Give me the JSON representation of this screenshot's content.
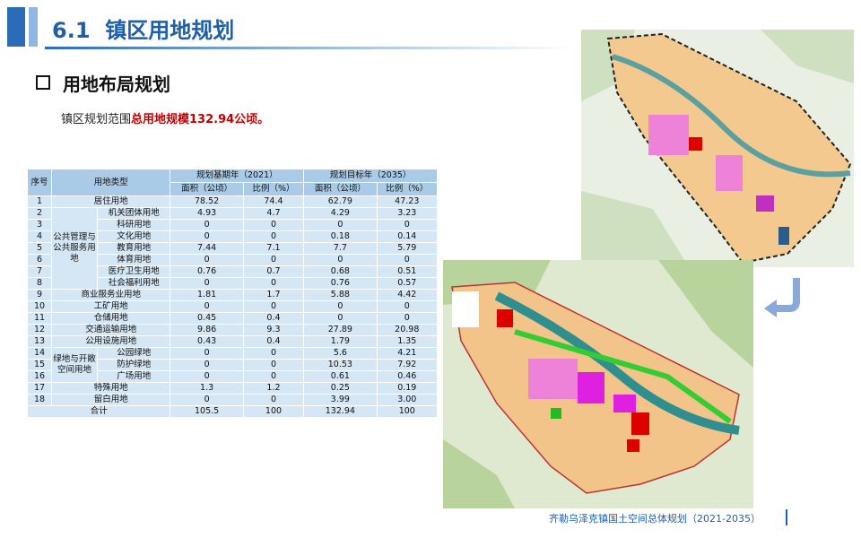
{
  "header": {
    "number": "6.1",
    "title": "镇区用地规划"
  },
  "section": {
    "title": "用地布局规划"
  },
  "intro": {
    "text": "镇区规划范围",
    "highlight": "总用地规模132.94公顷。"
  },
  "table": {
    "header": {
      "no": "序号",
      "type": "用地类型",
      "base": "规划基期年（2021）",
      "target": "规划目标年（2035）"
    },
    "subheaders": [
      "面积（公顷）",
      "比例（%）",
      "面积（公顷）",
      "比例（%）"
    ],
    "rows": [
      {
        "no": "1",
        "type": "居住用地",
        "values": [
          "78.52",
          "74.4",
          "62.79",
          "47.23"
        ]
      },
      {
        "group": "公共管理与公共服务用地",
        "rows": [
          {
            "no": "2",
            "type": "机关团体用地",
            "values": [
              "4.93",
              "4.7",
              "4.29",
              "3.23"
            ]
          },
          {
            "no": "3",
            "type": "科研用地",
            "values": [
              "0",
              "0",
              "0",
              "0"
            ]
          },
          {
            "no": "4",
            "type": "文化用地",
            "values": [
              "0",
              "0",
              "0.18",
              "0.14"
            ]
          },
          {
            "no": "5",
            "type": "教育用地",
            "values": [
              "7.44",
              "7.1",
              "7.7",
              "5.79"
            ]
          },
          {
            "no": "6",
            "type": "体育用地",
            "values": [
              "0",
              "0",
              "0",
              "0"
            ]
          },
          {
            "no": "7",
            "type": "医疗卫生用地",
            "values": [
              "0.76",
              "0.7",
              "0.68",
              "0.51"
            ]
          },
          {
            "no": "8",
            "type": "社会福利用地",
            "values": [
              "0",
              "0",
              "0.76",
              "0.57"
            ]
          }
        ]
      },
      {
        "no": "9",
        "type": "商业服务业用地",
        "values": [
          "1.81",
          "1.7",
          "5.88",
          "4.42"
        ]
      },
      {
        "no": "10",
        "type": "工矿用地",
        "values": [
          "0",
          "0",
          "0",
          "0"
        ]
      },
      {
        "no": "11",
        "type": "仓储用地",
        "values": [
          "0.45",
          "0.4",
          "0",
          "0"
        ]
      },
      {
        "no": "12",
        "type": "交通运输用地",
        "values": [
          "9.86",
          "9.3",
          "27.89",
          "20.98"
        ]
      },
      {
        "no": "13",
        "type": "公用设施用地",
        "values": [
          "0.43",
          "0.4",
          "1.79",
          "1.35"
        ]
      },
      {
        "group": "绿地与开敞空间用地",
        "rows": [
          {
            "no": "14",
            "type": "公园绿地",
            "values": [
              "0",
              "0",
              "5.6",
              "4.21"
            ]
          },
          {
            "no": "15",
            "type": "防护绿地",
            "values": [
              "0",
              "0",
              "10.53",
              "7.92"
            ]
          },
          {
            "no": "16",
            "type": "广场用地",
            "values": [
              "0",
              "0",
              "0.61",
              "0.46"
            ]
          }
        ]
      },
      {
        "no": "17",
        "type": "特殊用地",
        "values": [
          "1.3",
          "1.2",
          "0.25",
          "0.19"
        ]
      },
      {
        "no": "18",
        "type": "留白用地",
        "values": [
          "0",
          "0",
          "3.99",
          "3.00"
        ]
      }
    ],
    "total": {
      "label": "合计",
      "values": [
        "105.5",
        "100",
        "132.94",
        "100"
      ]
    }
  },
  "footer": {
    "text": "齐勒乌泽克镇国土空间总体规划（2021-2035）"
  }
}
